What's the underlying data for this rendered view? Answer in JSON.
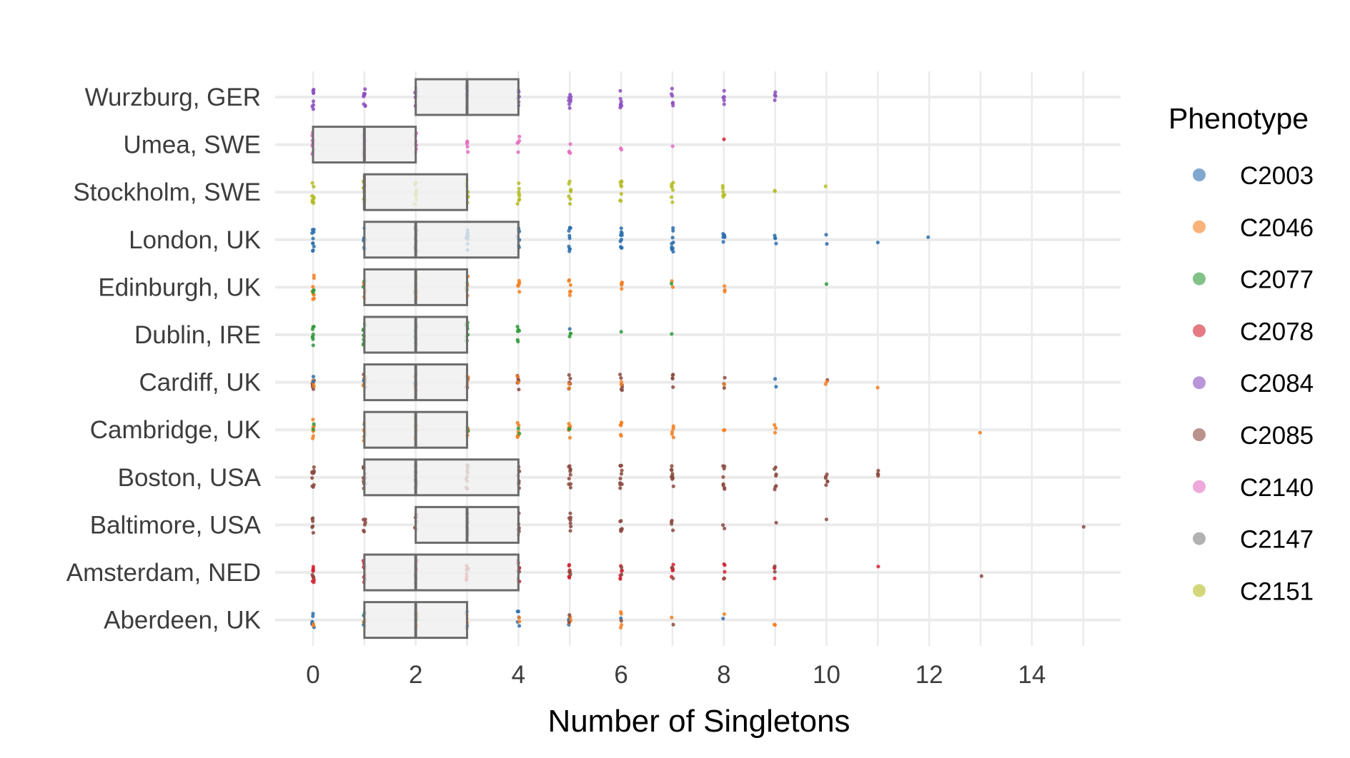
{
  "chart_data": {
    "type": "boxplot-jitter",
    "xlabel": "Number of Singletons",
    "ylabel": "",
    "xlim": [
      -0.8,
      15.8
    ],
    "x_ticks": [
      0,
      2,
      4,
      6,
      8,
      10,
      12,
      14
    ],
    "x_gridlines": [
      0,
      1,
      2,
      3,
      4,
      5,
      6,
      7,
      8,
      9,
      10,
      11,
      12,
      13,
      14,
      15
    ],
    "grid": true,
    "legend": {
      "title": "Phenotype",
      "position": "right",
      "entries": [
        {
          "name": "C2003",
          "color": "#2c6ead"
        },
        {
          "name": "C2046",
          "color": "#f57f21"
        },
        {
          "name": "C2077",
          "color": "#2f9a3a"
        },
        {
          "name": "C2078",
          "color": "#d32232"
        },
        {
          "name": "C2084",
          "color": "#8c4fbf"
        },
        {
          "name": "C2085",
          "color": "#8b4a3f"
        },
        {
          "name": "C2140",
          "color": "#e46ec3"
        },
        {
          "name": "C2147",
          "color": "#7e7e7e"
        },
        {
          "name": "C2151",
          "color": "#b5bc22"
        }
      ]
    },
    "categories": [
      "Wurzburg, GER",
      "Umea, SWE",
      "Stockholm, SWE",
      "London, UK",
      "Edinburgh, UK",
      "Dublin, IRE",
      "Cardiff, UK",
      "Cambridge, UK",
      "Boston, USA",
      "Baltimore, USA",
      "Amsterdam, NED",
      "Aberdeen, UK"
    ],
    "boxes": [
      {
        "category": "Wurzburg, GER",
        "q1": 2,
        "median": 3,
        "q3": 4
      },
      {
        "category": "Umea, SWE",
        "q1": 0,
        "median": 1,
        "q3": 2
      },
      {
        "category": "Stockholm, SWE",
        "q1": 1,
        "median": 1,
        "q3": 3
      },
      {
        "category": "London, UK",
        "q1": 1,
        "median": 2,
        "q3": 4
      },
      {
        "category": "Edinburgh, UK",
        "q1": 1,
        "median": 2,
        "q3": 3
      },
      {
        "category": "Dublin, IRE",
        "q1": 1,
        "median": 2,
        "q3": 3
      },
      {
        "category": "Cardiff, UK",
        "q1": 1,
        "median": 2,
        "q3": 3
      },
      {
        "category": "Cambridge, UK",
        "q1": 1,
        "median": 2,
        "q3": 3
      },
      {
        "category": "Boston, USA",
        "q1": 1,
        "median": 2,
        "q3": 4
      },
      {
        "category": "Baltimore, USA",
        "q1": 2,
        "median": 3,
        "q3": 4
      },
      {
        "category": "Amsterdam, NED",
        "q1": 1,
        "median": 2,
        "q3": 4
      },
      {
        "category": "Aberdeen, UK",
        "q1": 1,
        "median": 2,
        "q3": 3
      }
    ],
    "points": [
      {
        "category": "Wurzburg, GER",
        "phenotype": "C2084",
        "counts": {
          "0": 8,
          "1": 8,
          "2": 8,
          "3": 8,
          "4": 8,
          "5": 8,
          "6": 8,
          "7": 6,
          "8": 5,
          "9": 4
        }
      },
      {
        "category": "Umea, SWE",
        "phenotype": "C2140",
        "counts": {
          "0": 10,
          "1": 10,
          "2": 8,
          "3": 6,
          "4": 5,
          "5": 4,
          "6": 2,
          "7": 1
        }
      },
      {
        "category": "Umea, SWE",
        "phenotype": "C2078",
        "counts": {
          "8": 1
        }
      },
      {
        "category": "Stockholm, SWE",
        "phenotype": "C2151",
        "counts": {
          "0": 10,
          "1": 10,
          "2": 10,
          "3": 10,
          "4": 8,
          "5": 8,
          "6": 8,
          "7": 7,
          "8": 6,
          "9": 2,
          "10": 1
        }
      },
      {
        "category": "London, UK",
        "phenotype": "C2003",
        "counts": {
          "0": 10,
          "1": 10,
          "2": 10,
          "3": 10,
          "4": 10,
          "5": 10,
          "6": 10,
          "7": 10,
          "8": 6,
          "9": 4,
          "10": 2,
          "11": 1,
          "12": 1
        }
      },
      {
        "category": "Edinburgh, UK",
        "phenotype": "C2046",
        "counts": {
          "0": 8,
          "1": 8,
          "2": 8,
          "3": 8,
          "4": 6,
          "5": 6,
          "6": 5,
          "7": 2,
          "8": 3
        }
      },
      {
        "category": "Edinburgh, UK",
        "phenotype": "C2077",
        "counts": {
          "0": 3,
          "1": 3,
          "2": 3,
          "3": 3,
          "7": 1,
          "10": 1
        }
      },
      {
        "category": "Dublin, IRE",
        "phenotype": "C2077",
        "counts": {
          "0": 8,
          "1": 10,
          "2": 10,
          "3": 10,
          "4": 6,
          "5": 3,
          "6": 1,
          "7": 1
        }
      },
      {
        "category": "Dublin, IRE",
        "phenotype": "C2003",
        "counts": {
          "5": 1
        }
      },
      {
        "category": "Cardiff, UK",
        "phenotype": "C2085",
        "counts": {
          "0": 6,
          "1": 6,
          "2": 6,
          "3": 6,
          "4": 6,
          "5": 6,
          "6": 6,
          "7": 5,
          "8": 3,
          "10": 1
        }
      },
      {
        "category": "Cardiff, UK",
        "phenotype": "C2046",
        "counts": {
          "0": 3,
          "1": 3,
          "2": 3,
          "3": 3,
          "4": 2,
          "5": 2,
          "6": 2,
          "8": 1,
          "10": 2,
          "11": 1
        }
      },
      {
        "category": "Cardiff, UK",
        "phenotype": "C2003",
        "counts": {
          "0": 2,
          "1": 2,
          "2": 2,
          "9": 2
        }
      },
      {
        "category": "Cambridge, UK",
        "phenotype": "C2046",
        "counts": {
          "0": 7,
          "1": 7,
          "2": 7,
          "3": 6,
          "4": 6,
          "5": 6,
          "6": 6,
          "7": 5,
          "8": 2,
          "9": 3,
          "13": 1
        }
      },
      {
        "category": "Cambridge, UK",
        "phenotype": "C2077",
        "counts": {
          "0": 2,
          "1": 2,
          "2": 2,
          "3": 2,
          "4": 2,
          "5": 2
        }
      },
      {
        "category": "Boston, USA",
        "phenotype": "C2085",
        "counts": {
          "0": 10,
          "1": 10,
          "2": 10,
          "3": 10,
          "4": 10,
          "5": 10,
          "6": 10,
          "7": 10,
          "8": 8,
          "9": 7,
          "10": 6,
          "11": 4
        }
      },
      {
        "category": "Baltimore, USA",
        "phenotype": "C2085",
        "counts": {
          "0": 6,
          "1": 6,
          "2": 8,
          "3": 8,
          "4": 8,
          "5": 7,
          "6": 6,
          "7": 4,
          "8": 2,
          "9": 1,
          "10": 1,
          "15": 1
        }
      },
      {
        "category": "Amsterdam, NED",
        "phenotype": "C2078",
        "counts": {
          "0": 10,
          "1": 8,
          "2": 8,
          "3": 8,
          "4": 8,
          "5": 6,
          "6": 6,
          "7": 6,
          "8": 4,
          "9": 3,
          "11": 1
        }
      },
      {
        "category": "Amsterdam, NED",
        "phenotype": "C2085",
        "counts": {
          "0": 2,
          "1": 2,
          "2": 2,
          "3": 2,
          "4": 2,
          "5": 3,
          "6": 2,
          "7": 2,
          "8": 1,
          "9": 2,
          "13": 1
        }
      },
      {
        "category": "Aberdeen, UK",
        "phenotype": "C2003",
        "counts": {
          "0": 6,
          "1": 4,
          "2": 4,
          "3": 4,
          "4": 5,
          "5": 3,
          "6": 1,
          "8": 1
        }
      },
      {
        "category": "Aberdeen, UK",
        "phenotype": "C2046",
        "counts": {
          "0": 2,
          "1": 3,
          "2": 4,
          "3": 3,
          "4": 2,
          "5": 3,
          "6": 4,
          "7": 1,
          "8": 1,
          "9": 2
        }
      },
      {
        "category": "Aberdeen, UK",
        "phenotype": "C2077",
        "counts": {
          "1": 3,
          "2": 2
        }
      },
      {
        "category": "Aberdeen, UK",
        "phenotype": "C2085",
        "counts": {
          "5": 2,
          "6": 1,
          "7": 1
        }
      }
    ]
  }
}
